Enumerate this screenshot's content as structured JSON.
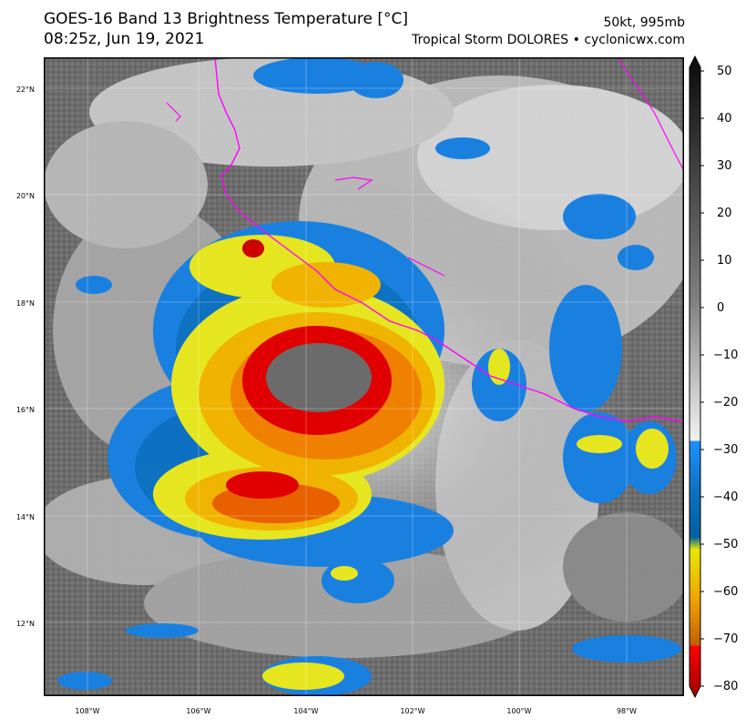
{
  "header": {
    "title_line1": "GOES-16 Band 13 Brightness Temperature [°C]",
    "title_line2": "08:25z, Jun 19, 2021",
    "right_line1": "50kt, 995mb",
    "right_line2": "Tropical Storm DOLORES • cyclonicwx.com"
  },
  "map": {
    "lon_labels": [
      "108°W",
      "106°W",
      "104°W",
      "102°W",
      "100°W",
      "98°W"
    ],
    "lat_labels": [
      "22°N",
      "20°N",
      "18°N",
      "16°N",
      "14°N",
      "12°N"
    ],
    "coastline_color": "#ff00ff",
    "storm_name": "DOLORES"
  },
  "colorbar": {
    "ticks": [
      "50",
      "40",
      "30",
      "20",
      "10",
      "0",
      "−10",
      "−20",
      "−30",
      "−40",
      "−50",
      "−60",
      "−70",
      "−80"
    ],
    "vmin": -80,
    "vmax": 50
  }
}
